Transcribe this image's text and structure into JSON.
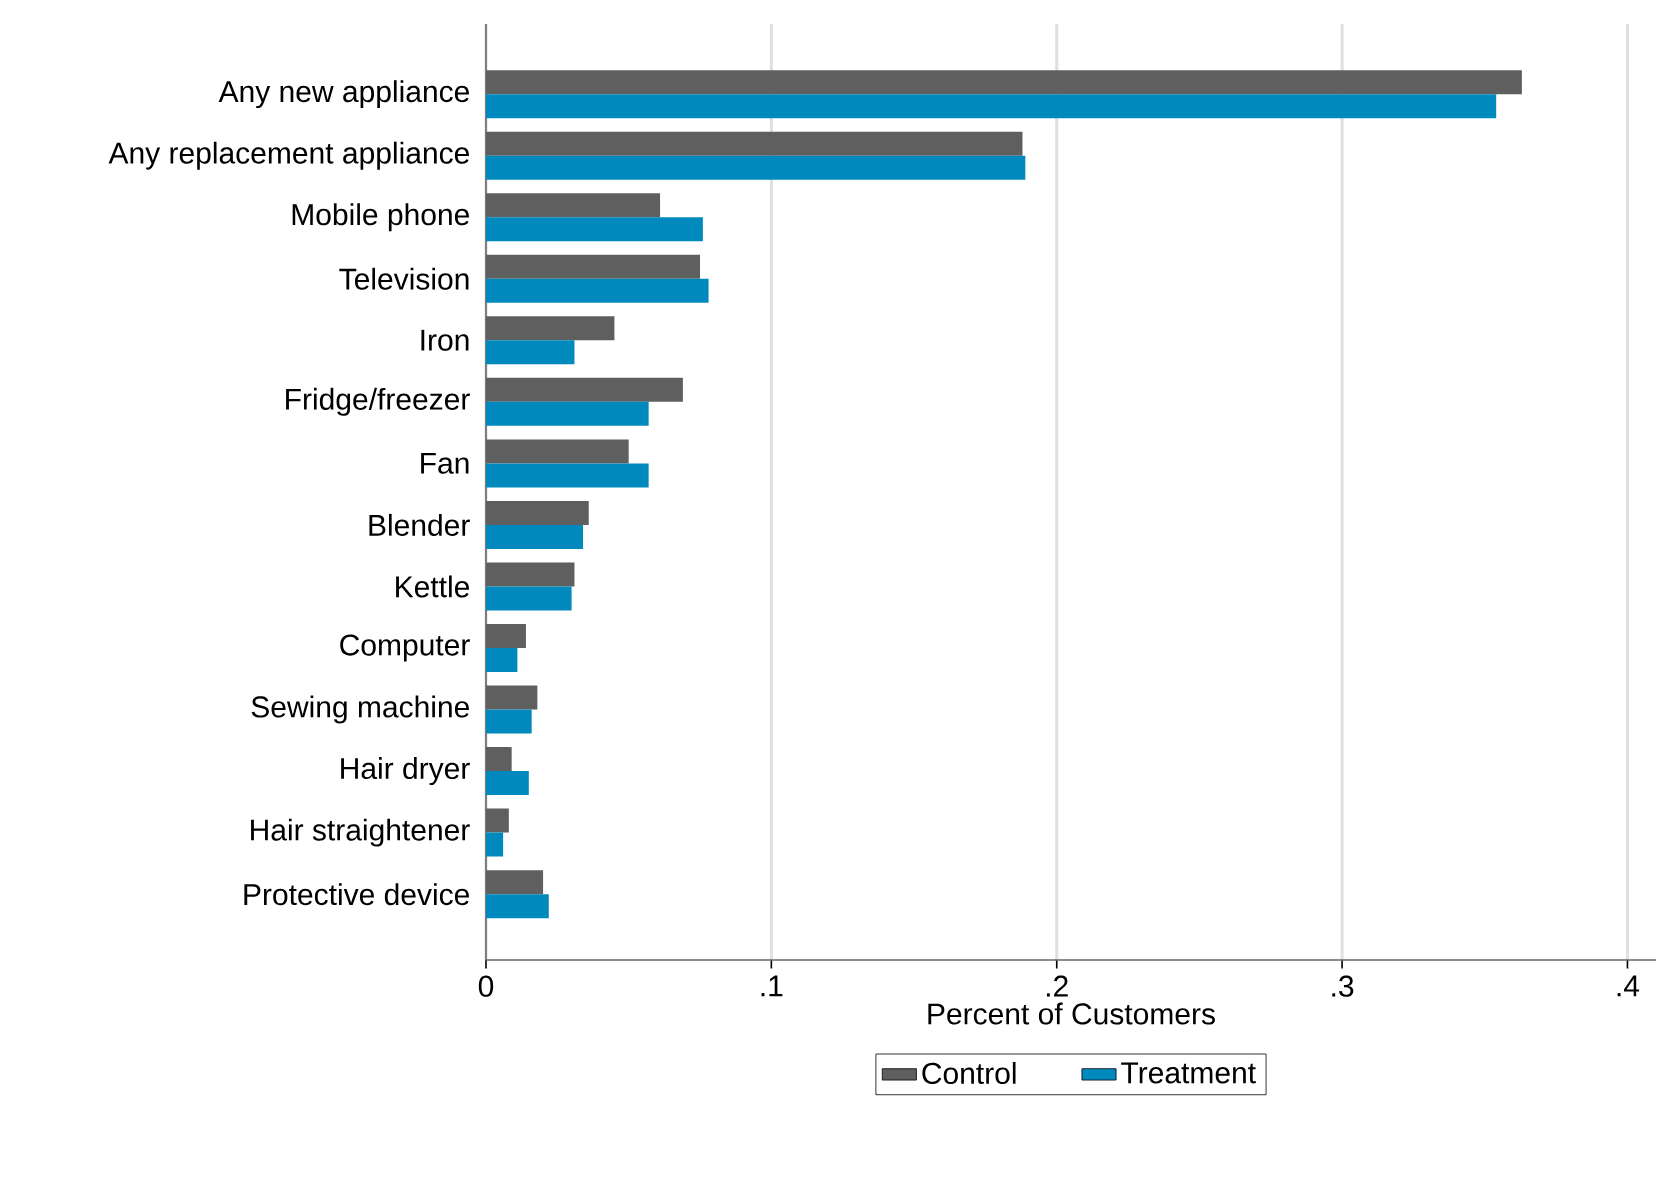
{
  "chart_data": {
    "type": "bar",
    "orientation": "horizontal",
    "categories": [
      "Any new appliance",
      "Any replacement appliance",
      "Mobile phone",
      "Television",
      "Iron",
      "Fridge/freezer",
      "Fan",
      "Blender",
      "Kettle",
      "Computer",
      "Sewing machine",
      "Hair dryer",
      "Hair straightener",
      "Protective device"
    ],
    "series": [
      {
        "name": "Control",
        "color": "#5f5f5f",
        "values": [
          0.363,
          0.188,
          0.061,
          0.075,
          0.045,
          0.069,
          0.05,
          0.036,
          0.031,
          0.014,
          0.018,
          0.009,
          0.008,
          0.02
        ]
      },
      {
        "name": "Treatment",
        "color": "#0089bd",
        "values": [
          0.354,
          0.189,
          0.076,
          0.078,
          0.031,
          0.057,
          0.057,
          0.034,
          0.03,
          0.011,
          0.016,
          0.015,
          0.006,
          0.022
        ]
      }
    ],
    "xlabel": "Percent of Customers",
    "xlim": [
      0,
      0.41
    ],
    "xticks": [
      0,
      {
        "value": 0.1,
        "label": ".1"
      },
      {
        "value": 0.2,
        "label": ".2"
      },
      {
        "value": 0.3,
        "label": ".3"
      },
      {
        "value": 0.4,
        "label": ".4"
      }
    ],
    "grid": "x",
    "legend": "bottom"
  }
}
